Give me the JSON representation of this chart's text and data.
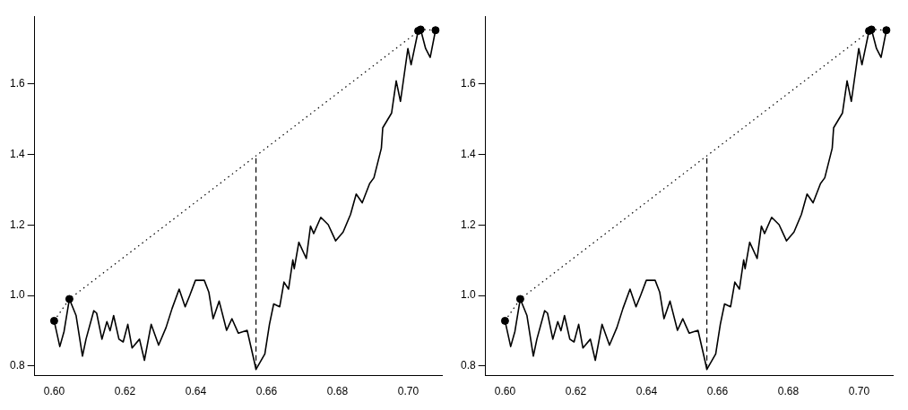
{
  "chart_data": [
    {
      "type": "line",
      "xlim": [
        0.5945,
        0.7095
      ],
      "ylim": [
        0.7725,
        1.7925
      ],
      "xticks": [
        {
          "value": 0.6,
          "label": "0.60"
        },
        {
          "value": 0.62,
          "label": "0.62"
        },
        {
          "value": 0.64,
          "label": "0.64"
        },
        {
          "value": 0.66,
          "label": "0.66"
        },
        {
          "value": 0.68,
          "label": "0.68"
        },
        {
          "value": 0.7,
          "label": "0.70"
        }
      ],
      "yticks": [
        {
          "value": 0.8,
          "label": "0.8"
        },
        {
          "value": 1,
          "label": "1.0"
        },
        {
          "value": 1.2,
          "label": "1.2"
        },
        {
          "value": 1.4,
          "label": "1.4"
        },
        {
          "value": 1.6,
          "label": "1.6"
        }
      ],
      "grid": false,
      "legend": false,
      "series": [
        {
          "type": "line",
          "color": "#000000",
          "marker": "none",
          "line_style": "solid",
          "x": [
            0.6,
            0.6016,
            0.6028,
            0.6043,
            0.6062,
            0.608,
            0.609,
            0.6112,
            0.612,
            0.6135,
            0.6149,
            0.6158,
            0.6168,
            0.6183,
            0.6195,
            0.6208,
            0.622,
            0.6241,
            0.6255,
            0.6274,
            0.6295,
            0.6316,
            0.6333,
            0.6353,
            0.637,
            0.6383,
            0.6399,
            0.6424,
            0.6437,
            0.6449,
            0.6466,
            0.6487,
            0.6502,
            0.652,
            0.6545,
            0.6566,
            0.657,
            0.6595,
            0.6608,
            0.662,
            0.6637,
            0.6649,
            0.6662,
            0.6674,
            0.6678,
            0.6691,
            0.6712,
            0.6724,
            0.6733,
            0.6753,
            0.6774,
            0.6795,
            0.6816,
            0.6837,
            0.6853,
            0.687,
            0.6891,
            0.6903,
            0.6924,
            0.6928,
            0.6953,
            0.6966,
            0.6978,
            0.6999,
            0.7008,
            0.7028,
            0.7035,
            0.7049,
            0.7062,
            0.7077
          ],
          "values": [
            0.928,
            0.855,
            0.898,
            0.99,
            0.943,
            0.828,
            0.876,
            0.957,
            0.95,
            0.876,
            0.926,
            0.9,
            0.943,
            0.876,
            0.868,
            0.918,
            0.851,
            0.876,
            0.816,
            0.918,
            0.859,
            0.909,
            0.963,
            1.018,
            0.968,
            1.0,
            1.043,
            1.043,
            1.009,
            0.934,
            0.984,
            0.901,
            0.934,
            0.893,
            0.901,
            0.809,
            0.79,
            0.834,
            0.918,
            0.976,
            0.968,
            1.038,
            1.018,
            1.101,
            1.076,
            1.151,
            1.105,
            1.197,
            1.176,
            1.222,
            1.201,
            1.155,
            1.18,
            1.23,
            1.288,
            1.263,
            1.318,
            1.334,
            1.418,
            1.476,
            1.518,
            1.609,
            1.551,
            1.701,
            1.655,
            1.751,
            1.755,
            1.701,
            1.676,
            1.753
          ]
        },
        {
          "type": "line",
          "color": "#000000",
          "marker": "none",
          "line_style": "dotted",
          "x": [
            0.6,
            0.6043,
            0.7035,
            0.7077
          ],
          "values": [
            0.928,
            0.99,
            1.755,
            1.753
          ]
        },
        {
          "type": "line",
          "color": "#000000",
          "marker": "none",
          "line_style": "dashed",
          "x": [
            0.657,
            0.657
          ],
          "values": [
            0.79,
            1.395
          ]
        },
        {
          "type": "scatter",
          "color": "#000000",
          "marker": "circle",
          "x": [
            0.6,
            0.6043,
            0.7028,
            0.7035,
            0.7077
          ],
          "values": [
            0.928,
            0.99,
            1.751,
            1.755,
            1.753
          ]
        }
      ]
    },
    {
      "type": "line",
      "xlim": [
        0.5945,
        0.7095
      ],
      "ylim": [
        0.7725,
        1.7925
      ],
      "xticks": [
        {
          "value": 0.6,
          "label": "0.60"
        },
        {
          "value": 0.62,
          "label": "0.62"
        },
        {
          "value": 0.64,
          "label": "0.64"
        },
        {
          "value": 0.66,
          "label": "0.66"
        },
        {
          "value": 0.68,
          "label": "0.68"
        },
        {
          "value": 0.7,
          "label": "0.70"
        }
      ],
      "yticks": [
        {
          "value": 0.8,
          "label": "0.8"
        },
        {
          "value": 1,
          "label": "1.0"
        },
        {
          "value": 1.2,
          "label": "1.2"
        },
        {
          "value": 1.4,
          "label": "1.4"
        },
        {
          "value": 1.6,
          "label": "1.6"
        }
      ],
      "grid": false,
      "legend": false,
      "series": [
        {
          "type": "line",
          "color": "#000000",
          "marker": "none",
          "line_style": "solid",
          "x": [
            0.6,
            0.6016,
            0.6028,
            0.6043,
            0.6062,
            0.608,
            0.609,
            0.6112,
            0.612,
            0.6135,
            0.6149,
            0.6158,
            0.6168,
            0.6183,
            0.6195,
            0.6208,
            0.622,
            0.6241,
            0.6255,
            0.6274,
            0.6295,
            0.6316,
            0.6333,
            0.6353,
            0.637,
            0.6383,
            0.6399,
            0.6424,
            0.6437,
            0.6449,
            0.6466,
            0.6487,
            0.6502,
            0.652,
            0.6545,
            0.6566,
            0.657,
            0.6595,
            0.6608,
            0.662,
            0.6637,
            0.6649,
            0.6662,
            0.6674,
            0.6678,
            0.6691,
            0.6712,
            0.6724,
            0.6733,
            0.6753,
            0.6774,
            0.6795,
            0.6816,
            0.6837,
            0.6853,
            0.687,
            0.6891,
            0.6903,
            0.6924,
            0.6928,
            0.6953,
            0.6966,
            0.6978,
            0.6999,
            0.7008,
            0.7028,
            0.7035,
            0.7049,
            0.7062,
            0.7077
          ],
          "values": [
            0.928,
            0.855,
            0.898,
            0.99,
            0.943,
            0.828,
            0.876,
            0.957,
            0.95,
            0.876,
            0.926,
            0.9,
            0.943,
            0.876,
            0.868,
            0.918,
            0.851,
            0.876,
            0.816,
            0.918,
            0.859,
            0.909,
            0.963,
            1.018,
            0.968,
            1.0,
            1.043,
            1.043,
            1.009,
            0.934,
            0.984,
            0.901,
            0.934,
            0.893,
            0.901,
            0.809,
            0.79,
            0.834,
            0.918,
            0.976,
            0.968,
            1.038,
            1.018,
            1.101,
            1.076,
            1.151,
            1.105,
            1.197,
            1.176,
            1.222,
            1.201,
            1.155,
            1.18,
            1.23,
            1.288,
            1.263,
            1.318,
            1.334,
            1.418,
            1.476,
            1.518,
            1.609,
            1.551,
            1.701,
            1.655,
            1.751,
            1.755,
            1.701,
            1.676,
            1.753
          ]
        },
        {
          "type": "line",
          "color": "#000000",
          "marker": "none",
          "line_style": "dotted",
          "x": [
            0.6,
            0.6043,
            0.7035,
            0.7077
          ],
          "values": [
            0.928,
            0.99,
            1.755,
            1.753
          ]
        },
        {
          "type": "line",
          "color": "#000000",
          "marker": "none",
          "line_style": "dashed",
          "x": [
            0.657,
            0.657
          ],
          "values": [
            0.79,
            1.395
          ]
        },
        {
          "type": "scatter",
          "color": "#000000",
          "marker": "circle",
          "x": [
            0.6,
            0.6043,
            0.7028,
            0.7035,
            0.7077
          ],
          "values": [
            0.928,
            0.99,
            1.751,
            1.755,
            1.753
          ]
        }
      ]
    }
  ]
}
